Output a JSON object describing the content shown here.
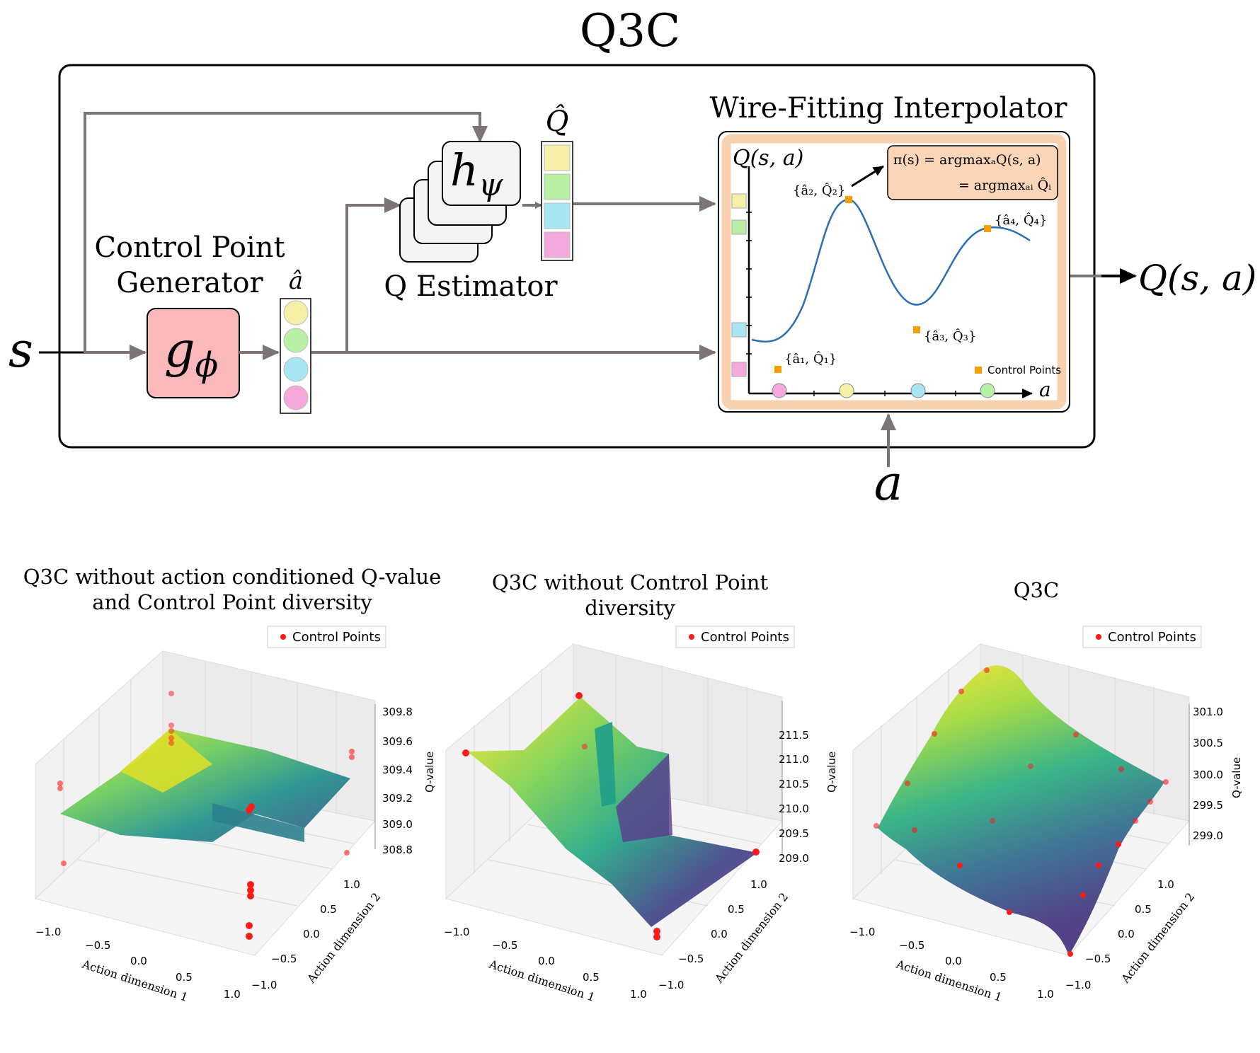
{
  "diagram": {
    "title": "Q3C",
    "input_s": "s",
    "input_a": "a",
    "output": "Q(s, a)",
    "cpg_label_line1": "Control Point",
    "cpg_label_line2": "Generator",
    "g_label": "g",
    "g_sub": "ϕ",
    "a_hat_label": "â",
    "q_hat_label": "Q̂",
    "h_label": "h",
    "h_sub": "ψ",
    "q_estimator_label": "Q Estimator",
    "wf_title": "Wire-Fitting Interpolator",
    "wf_y_label": "Q(s, a)",
    "wf_x_label": "a",
    "policy_line1": "π(s) = argmaxₐQ(s, a)",
    "policy_line2": "= argmaxₐᵢ Q̂ᵢ",
    "cp_labels": [
      "{â₁, Q̂₁}",
      "{â₂, Q̂₂}",
      "{â₃, Q̂₃}",
      "{â₄, Q̂₄}"
    ],
    "cp_legend": "Control Points",
    "colors": {
      "yellow": "#f6f0a6",
      "green": "#b8f0a6",
      "cyan": "#a8e6f3",
      "pink": "#f5a8dc",
      "g_box": "#fbb8bb",
      "wf_border": "#f8d1b0",
      "policy_box": "#fbd5b8",
      "curve": "#2a6eb3",
      "cp_marker": "#f5a000",
      "arrow": "#7d7575"
    }
  },
  "plots": [
    {
      "title_line1": "Q3C without action conditioned Q-value",
      "title_line2": "and Control Point diversity",
      "legend": "Control Points",
      "z_label": "Q-value",
      "z_ticks": [
        "309.8",
        "309.6",
        "309.4",
        "309.2",
        "309.0",
        "308.8"
      ],
      "x_label": "Action dimension 1",
      "y_label": "Action dimension 2",
      "x_ticks": [
        "−1.0",
        "−0.5",
        "0.0",
        "0.5",
        "1.0"
      ],
      "y_ticks": [
        "1.0",
        "0.5",
        "0.0",
        "−0.5",
        "−1.0"
      ]
    },
    {
      "title_line1": "Q3C without Control Point",
      "title_line2": "diversity",
      "legend": "Control Points",
      "z_label": "Q-value",
      "z_ticks": [
        "211.5",
        "211.0",
        "210.5",
        "210.0",
        "209.5",
        "209.0"
      ],
      "x_label": "Action dimension 1",
      "y_label": "Action dimension 2",
      "x_ticks": [
        "−1.0",
        "−0.5",
        "0.0",
        "0.5",
        "1.0"
      ],
      "y_ticks": [
        "1.0",
        "0.5",
        "0.0",
        "−0.5",
        "−1.0"
      ]
    },
    {
      "title_line1": "Q3C",
      "title_line2": "",
      "legend": "Control Points",
      "z_label": "Q-value",
      "z_ticks": [
        "301.0",
        "300.5",
        "300.0",
        "299.5",
        "299.0"
      ],
      "x_label": "Action dimension 1",
      "y_label": "Action dimension 2",
      "x_ticks": [
        "−1.0",
        "−0.5",
        "0.0",
        "0.5",
        "1.0"
      ],
      "y_ticks": [
        "1.0",
        "0.5",
        "0.0",
        "−0.5",
        "−1.0"
      ]
    }
  ]
}
